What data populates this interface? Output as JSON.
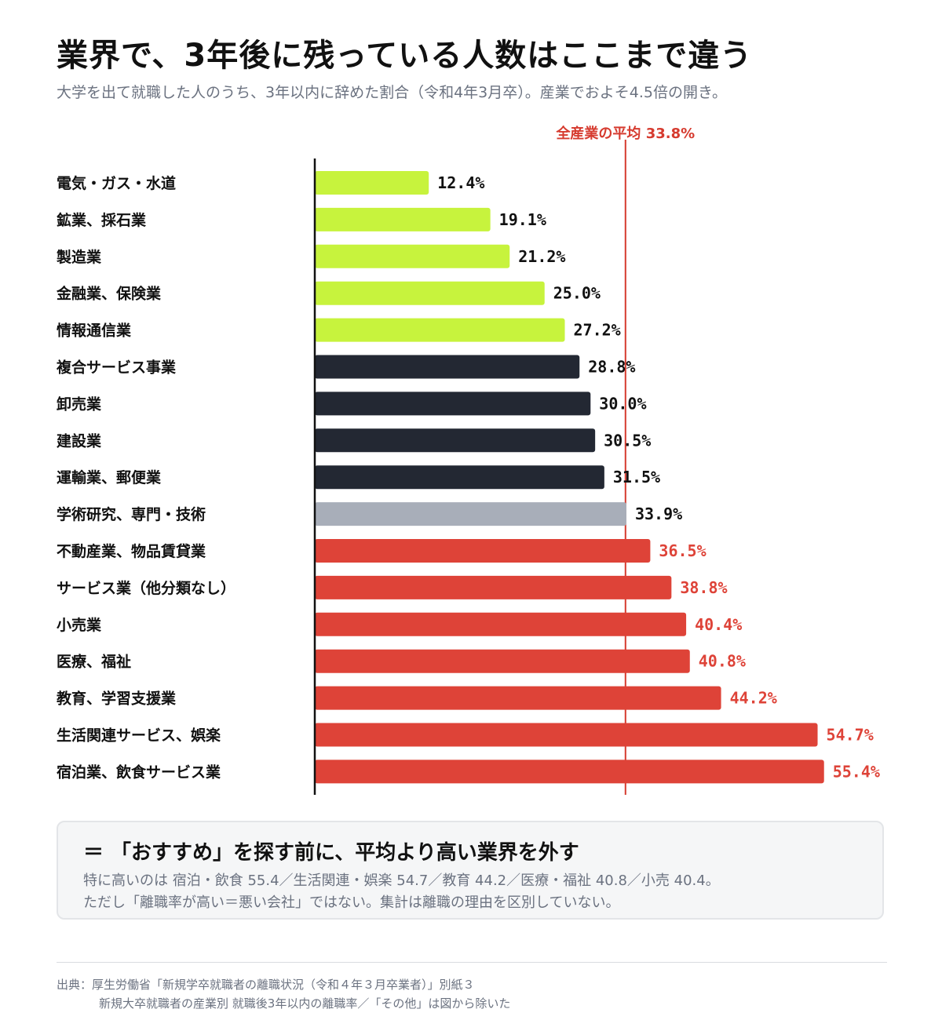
{
  "title": "業界で、3年後に残っている人数はここまで違う",
  "subtitle": "大学を出て就職した人のうち、3年以内に辞めた割合（令和4年3月卒）。産業でおよそ4.5倍の開き。",
  "chart_data": {
    "type": "bar",
    "orientation": "horizontal",
    "unit": "%",
    "xlim": [
      0,
      60
    ],
    "grid": false,
    "reference_line": {
      "label": "全産業の平均 33.8%",
      "value": 33.8,
      "color": "#d63b2f"
    },
    "categories": [
      "電気・ガス・水道",
      "鉱業、採石業",
      "製造業",
      "金融業、保険業",
      "情報通信業",
      "複合サービス事業",
      "卸売業",
      "建設業",
      "運輸業、郵便業",
      "学術研究、専門・技術",
      "不動産業、物品賃貸業",
      "サービス業（他分類なし）",
      "小売業",
      "医療、福祉",
      "教育、学習支援業",
      "生活関連サービス、娯楽",
      "宿泊業、飲食サービス業"
    ],
    "values": [
      12.4,
      19.1,
      21.2,
      25.0,
      27.2,
      28.8,
      30.0,
      30.5,
      31.5,
      33.9,
      36.5,
      38.8,
      40.4,
      40.8,
      44.2,
      54.7,
      55.4
    ],
    "value_labels": [
      "12.4%",
      "19.1%",
      "21.2%",
      "25.0%",
      "27.2%",
      "28.8%",
      "30.0%",
      "30.5%",
      "31.5%",
      "33.9%",
      "36.5%",
      "38.8%",
      "40.4%",
      "40.8%",
      "44.2%",
      "54.7%",
      "55.4%"
    ],
    "bar_colors": [
      "#c7f33d",
      "#c7f33d",
      "#c7f33d",
      "#c7f33d",
      "#c7f33d",
      "#232833",
      "#232833",
      "#232833",
      "#232833",
      "#a8aeb9",
      "#de4338",
      "#de4338",
      "#de4338",
      "#de4338",
      "#de4338",
      "#de4338",
      "#de4338"
    ],
    "label_colors": [
      "#111111",
      "#111111",
      "#111111",
      "#111111",
      "#111111",
      "#111111",
      "#111111",
      "#111111",
      "#111111",
      "#111111",
      "#de4338",
      "#de4338",
      "#de4338",
      "#de4338",
      "#de4338",
      "#de4338",
      "#de4338"
    ]
  },
  "callout": {
    "title": "＝ 「おすすめ」を探す前に、平均より高い業界を外す",
    "line1": "特に高いのは 宿泊・飲食 55.4／生活関連・娯楽 54.7／教育 44.2／医療・福祉 40.8／小売 40.4。",
    "line2": "ただし「離職率が高い＝悪い会社」ではない。集計は離職の理由を区別していない。"
  },
  "source": {
    "line1": "出典：厚生労働省「新規学卒就職者の離職状況（令和４年３月卒業者）」別紙３",
    "line2": "新規大卒就職者の産業別 就職後3年以内の離職率／「その他」は図から除いた"
  }
}
